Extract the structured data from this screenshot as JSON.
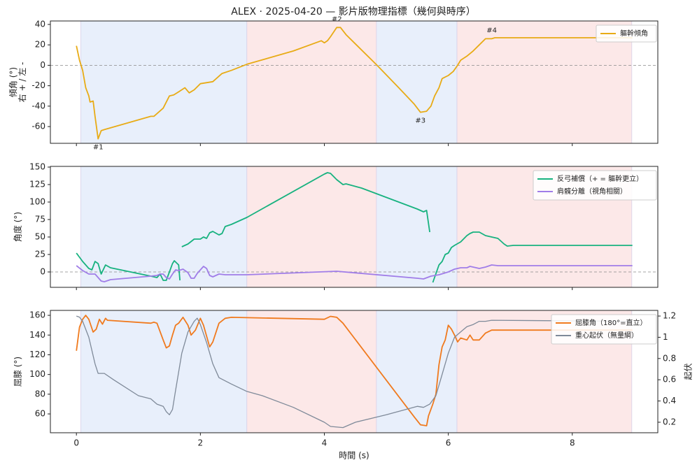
{
  "title": "ALEX · 2025-04-20 — 影片版物理指標（幾何與時序）",
  "spans": [
    {
      "start": 0.07,
      "end": 2.75,
      "color": "#e8effb"
    },
    {
      "start": 2.75,
      "end": 4.84,
      "color": "#fce8e8"
    },
    {
      "start": 4.84,
      "end": 6.14,
      "color": "#e8effb"
    },
    {
      "start": 6.14,
      "end": 8.96,
      "color": "#fce8e8"
    }
  ],
  "chart_data": [
    {
      "type": "line",
      "ylabel": [
        "傾角 (°)",
        "右 + / 左 -"
      ],
      "xlim": [
        -0.42,
        9.38
      ],
      "xticks": [
        0,
        2,
        4,
        6,
        8
      ],
      "xtick_labels": false,
      "ylim": [
        -76.4,
        43.4
      ],
      "yticks": [
        -60,
        -40,
        -20,
        0,
        20,
        40
      ],
      "hline": 0,
      "legend": "upper right",
      "series": [
        {
          "name": "軀幹傾角",
          "color": "#e8ab15",
          "x": [
            0,
            0.05,
            0.1,
            0.15,
            0.2,
            0.22,
            0.27,
            0.3,
            0.35,
            0.4,
            0.45,
            1.2,
            1.25,
            1.4,
            1.5,
            1.57,
            1.65,
            1.75,
            1.82,
            1.9,
            2.0,
            2.2,
            2.35,
            2.5,
            2.75,
            3.5,
            3.95,
            4.0,
            4.05,
            4.1,
            4.2,
            4.26,
            4.35,
            4.85,
            5.2,
            5.45,
            5.55,
            5.65,
            5.72,
            5.78,
            5.85,
            5.9,
            6.0,
            6.08,
            6.15,
            6.2,
            6.3,
            6.4,
            6.5,
            6.6,
            6.7,
            6.75,
            8.97
          ],
          "values": [
            19,
            5,
            -5,
            -22,
            -30,
            -36,
            -35,
            -50,
            -72,
            -64,
            -63,
            -50,
            -50,
            -42,
            -30,
            -29,
            -26,
            -22,
            -27,
            -24,
            -18,
            -16,
            -8,
            -5,
            1,
            14,
            24,
            22,
            24,
            28,
            37,
            37,
            30,
            0,
            -22,
            -38,
            -46,
            -45,
            -40,
            -30,
            -22,
            -13,
            -10,
            -6,
            0,
            5,
            9,
            14,
            20,
            26,
            26,
            27,
            27
          ]
        }
      ],
      "annotations": [
        {
          "text": "#1",
          "x": 0.35,
          "y": -72,
          "position": "below"
        },
        {
          "text": "#2",
          "x": 4.2,
          "y": 37,
          "position": "above"
        },
        {
          "text": "#3",
          "x": 5.55,
          "y": -46,
          "position": "below"
        },
        {
          "text": "#4",
          "x": 6.7,
          "y": 26,
          "position": "above"
        }
      ]
    },
    {
      "type": "line",
      "ylabel": [
        "角度 (°)"
      ],
      "xlim": [
        -0.42,
        9.38
      ],
      "xticks": [
        0,
        2,
        4,
        6,
        8
      ],
      "xtick_labels": false,
      "ylim": [
        -22,
        151
      ],
      "yticks": [
        0,
        25,
        50,
        75,
        100,
        125,
        150
      ],
      "hline": 0,
      "legend": "upper right",
      "series": [
        {
          "name": "反弓補償（+ = 軀幹更立）",
          "color": "#17b27f",
          "x": [
            0,
            0.1,
            0.2,
            0.25,
            0.3,
            0.35,
            0.4,
            0.47,
            0.55,
            1.2,
            1.3,
            1.35,
            1.4,
            1.45,
            1.5,
            1.55,
            1.58,
            1.65,
            1.67,
            null,
            1.7,
            1.8,
            1.9,
            2.0,
            2.05,
            2.1,
            2.15,
            2.2,
            2.3,
            2.35,
            2.4,
            2.5,
            2.75,
            4.0,
            4.05,
            4.1,
            4.2,
            4.3,
            4.35,
            4.6,
            5.5,
            5.6,
            5.65,
            5.7,
            null,
            5.75,
            5.85,
            5.9,
            5.95,
            6.0,
            6.05,
            6.1,
            6.2,
            6.3,
            6.35,
            6.4,
            6.5,
            6.6,
            6.7,
            6.8,
            6.9,
            6.95,
            7.05,
            8.97
          ],
          "values": [
            27,
            15,
            5,
            3,
            15,
            12,
            -3,
            10,
            6,
            -6,
            -8,
            -3,
            -12,
            -12,
            0,
            12,
            16,
            10,
            -12,
            null,
            36,
            40,
            47,
            47,
            50,
            48,
            56,
            58,
            53,
            55,
            65,
            68,
            78,
            140,
            142,
            141,
            132,
            125,
            126,
            120,
            90,
            86,
            88,
            57,
            null,
            -15,
            10,
            15,
            25,
            27,
            35,
            38,
            43,
            52,
            55,
            57,
            57,
            52,
            50,
            48,
            40,
            37,
            38,
            38
          ]
        },
        {
          "name": "肩髖分離（視角相關）",
          "color": "#a07de8",
          "x": [
            0,
            0.1,
            0.2,
            0.3,
            0.35,
            0.4,
            0.45,
            0.55,
            1.2,
            1.3,
            1.35,
            1.4,
            1.45,
            1.5,
            1.55,
            1.6,
            1.65,
            1.72,
            1.8,
            1.85,
            1.9,
            1.95,
            2.05,
            2.1,
            2.15,
            2.2,
            2.3,
            2.4,
            2.75,
            4.2,
            5.5,
            5.6,
            5.72,
            5.85,
            6.0,
            6.1,
            6.2,
            6.3,
            6.35,
            6.5,
            6.6,
            6.7,
            6.8,
            8.97
          ],
          "values": [
            9,
            2,
            -3,
            -3,
            -8,
            -13,
            -14,
            -11,
            -6,
            -5,
            -3,
            -3,
            -8,
            -10,
            -3,
            3,
            2,
            4,
            -1,
            -9,
            -9,
            -2,
            8,
            5,
            -5,
            -7,
            -3,
            -4,
            -4,
            1,
            -9,
            -10,
            -6,
            -4,
            0,
            4,
            6,
            6,
            8,
            5,
            7,
            10,
            9,
            9
          ]
        }
      ]
    },
    {
      "type": "line",
      "ylabel": [
        "屈膝 (°)"
      ],
      "y2label": "起伏",
      "xlabel": "時間 (s)",
      "xlim": [
        -0.42,
        9.38
      ],
      "xticks": [
        0,
        2,
        4,
        6,
        8
      ],
      "xtick_labels": true,
      "ylim": [
        40.9,
        165
      ],
      "yticks": [
        60,
        80,
        100,
        120,
        140,
        160
      ],
      "y2lim": [
        0.101,
        1.253
      ],
      "y2ticks": [
        0.2,
        0.4,
        0.6,
        0.8,
        1.0,
        1.2
      ],
      "legend": "upper right",
      "series": [
        {
          "name": "屈膝角（180°=直立）",
          "color": "#f07a1e",
          "x": [
            0,
            0.05,
            0.1,
            0.15,
            0.2,
            0.27,
            0.32,
            0.37,
            0.42,
            0.47,
            0.5,
            1.2,
            1.25,
            1.3,
            1.4,
            1.45,
            1.5,
            1.55,
            1.6,
            1.65,
            1.72,
            1.8,
            1.85,
            1.92,
            2.0,
            2.05,
            2.15,
            2.2,
            2.3,
            2.4,
            2.5,
            4.0,
            4.1,
            4.2,
            4.3,
            5.45,
            5.55,
            5.65,
            5.68,
            5.75,
            5.8,
            5.85,
            5.9,
            5.95,
            6.0,
            6.05,
            6.1,
            6.15,
            6.2,
            6.3,
            6.35,
            6.4,
            6.5,
            6.6,
            6.7,
            8.97
          ],
          "values": [
            124,
            148,
            156,
            160,
            156,
            143,
            146,
            156,
            151,
            157,
            155,
            152,
            153,
            152,
            135,
            127,
            129,
            140,
            150,
            152,
            158,
            150,
            140,
            145,
            157,
            150,
            128,
            133,
            152,
            157,
            158,
            156,
            159,
            158,
            152,
            57,
            49,
            48,
            58,
            70,
            80,
            110,
            128,
            135,
            150,
            146,
            140,
            133,
            137,
            135,
            140,
            135,
            135,
            142,
            145,
            145
          ]
        },
        {
          "name": "重心起伏（無量綱）",
          "color": "#7f8a99",
          "axis": "y2",
          "x": [
            0,
            0.05,
            0.1,
            0.2,
            0.3,
            0.35,
            0.45,
            0.6,
            1.0,
            1.2,
            1.3,
            1.4,
            1.45,
            1.5,
            1.55,
            1.6,
            1.7,
            1.8,
            1.9,
            1.95,
            2.0,
            2.1,
            2.2,
            2.3,
            2.5,
            2.75,
            3.0,
            3.5,
            4.0,
            4.1,
            4.3,
            4.5,
            5.0,
            5.5,
            5.6,
            5.7,
            5.8,
            5.9,
            6.0,
            6.1,
            6.2,
            6.3,
            6.4,
            6.5,
            6.6,
            6.7,
            8.97
          ],
          "values": [
            1.2,
            1.19,
            1.15,
            1.0,
            0.75,
            0.66,
            0.66,
            0.6,
            0.45,
            0.42,
            0.37,
            0.35,
            0.3,
            0.27,
            0.32,
            0.5,
            0.85,
            1.05,
            1.15,
            1.18,
            1.12,
            0.95,
            0.75,
            0.62,
            0.56,
            0.49,
            0.45,
            0.34,
            0.2,
            0.16,
            0.15,
            0.2,
            0.27,
            0.35,
            0.34,
            0.37,
            0.45,
            0.65,
            0.85,
            1.0,
            1.05,
            1.1,
            1.12,
            1.15,
            1.15,
            1.16,
            1.15
          ]
        }
      ]
    }
  ]
}
